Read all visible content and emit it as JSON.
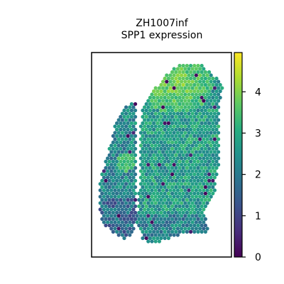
{
  "chart_data": {
    "type": "heatmap",
    "sample": "ZH1007inf",
    "title": [
      "ZH1007inf",
      "SPP1 expression"
    ],
    "xlabel": "",
    "ylabel": "",
    "colormap": "viridis",
    "colorbar": {
      "range": [
        0,
        4.95
      ],
      "ticks": [
        0,
        1,
        2,
        3,
        4
      ],
      "tick_labels": [
        "0",
        "1",
        "2",
        "3",
        "4"
      ]
    },
    "regions": [
      {
        "name": "left-tissue-strip",
        "typical_value": 2.3,
        "min": 0,
        "max": 3.8
      },
      {
        "name": "right-tissue-block",
        "typical_value": 2.7,
        "min": 0,
        "max": 4.9
      },
      {
        "name": "upper-right-hotspot",
        "typical_value": 4.0,
        "min": 3.0,
        "max": 4.9
      }
    ],
    "colors": {
      "low": "#440154",
      "mid": "#21918c",
      "high": "#fde725",
      "frame": "#000000"
    }
  }
}
